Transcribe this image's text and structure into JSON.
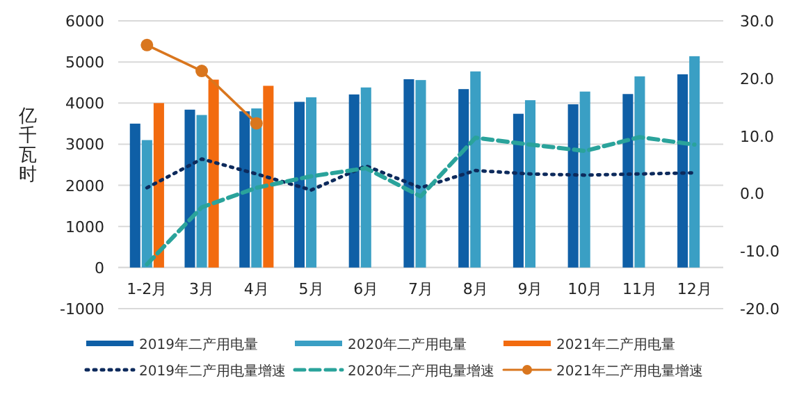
{
  "chart_data": {
    "type": "bar",
    "ylabel": "亿千瓦时",
    "categories": [
      "1-2月",
      "3月",
      "4月",
      "5月",
      "6月",
      "7月",
      "8月",
      "9月",
      "10月",
      "11月",
      "12月"
    ],
    "series": [
      {
        "name": "2019年二产用电量",
        "color": "#0f5fa6",
        "values": [
          3500,
          3840,
          3800,
          4030,
          4210,
          4580,
          4340,
          3740,
          3970,
          4220,
          4700
        ]
      },
      {
        "name": "2020年二产用电量",
        "color": "#3a9fc4",
        "values": [
          3100,
          3710,
          3870,
          4140,
          4380,
          4560,
          4770,
          4070,
          4280,
          4650,
          5140
        ]
      },
      {
        "name": "2021年二产用电量",
        "color": "#f26b0f",
        "values": [
          4000,
          4570,
          4420,
          null,
          null,
          null,
          null,
          null,
          null,
          null,
          null
        ]
      },
      {
        "name": "2019年二产用电量增速",
        "type": "line",
        "axis": "y2",
        "color": "#0d2a5c",
        "line_style": "dotted",
        "marker": "none",
        "values": [
          1.0,
          6.0,
          3.4,
          0.6,
          4.8,
          1.0,
          4.0,
          3.4,
          3.2,
          3.4,
          3.6
        ]
      },
      {
        "name": "2020年二产用电量增速",
        "type": "line",
        "axis": "y2",
        "color": "#2aa39b",
        "line_style": "dashed",
        "marker": "none",
        "values": [
          -12.3,
          -2.4,
          1.0,
          3.0,
          4.4,
          -0.5,
          9.7,
          8.5,
          7.4,
          9.8,
          8.5
        ]
      },
      {
        "name": "2021年二产用电量增速",
        "type": "line",
        "axis": "y2",
        "color": "#d9761e",
        "line_style": "solid",
        "marker": "circle",
        "values": [
          25.8,
          21.3,
          12.2,
          null,
          null,
          null,
          null,
          null,
          null,
          null,
          null
        ]
      }
    ],
    "ylim": [
      -1000,
      6000
    ],
    "yticks": [
      -1000,
      0,
      1000,
      2000,
      3000,
      4000,
      5000,
      6000
    ],
    "y2lim": [
      -20,
      30
    ],
    "y2ticks": [
      {
        "value": -20,
        "label": "-20.0"
      },
      {
        "value": -10,
        "label": "-10.0"
      },
      {
        "value": 0,
        "label": "0.0"
      },
      {
        "value": 10,
        "label": "10.0"
      },
      {
        "value": 20,
        "label": "20.0"
      },
      {
        "value": 30,
        "label": "30.0"
      }
    ],
    "grid": "y",
    "legend": "bottom"
  }
}
